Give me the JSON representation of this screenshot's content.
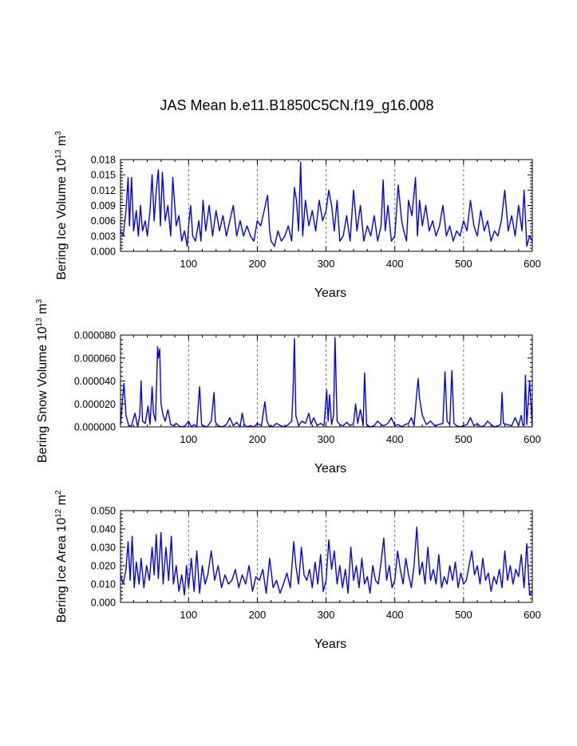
{
  "title": "JAS Mean b.e11.B1850C5CN.f19_g16.008",
  "colors": {
    "line": "#0000ff",
    "axis": "#000000"
  },
  "chart_data": [
    {
      "type": "line",
      "ylabel": {
        "base": "Bering Ice Volume 10",
        "exp": "13",
        "unit": " m",
        "unit_exp": "3"
      },
      "xlabel": "Years",
      "xlim": [
        1,
        600
      ],
      "ylim": [
        0,
        0.018
      ],
      "xticks": [
        100,
        200,
        300,
        400,
        500,
        600
      ],
      "yticks": [
        "0.000",
        "0.003",
        "0.006",
        "0.009",
        "0.012",
        "0.015",
        "0.018"
      ],
      "grid_x": [
        100,
        200,
        300,
        400,
        500
      ],
      "x": [
        1,
        5,
        9,
        12,
        14,
        17,
        20,
        24,
        27,
        30,
        33,
        37,
        40,
        44,
        47,
        50,
        53,
        56,
        59,
        62,
        66,
        70,
        74,
        77,
        82,
        86,
        90,
        94,
        98,
        100,
        103,
        106,
        110,
        115,
        118,
        121,
        125,
        130,
        135,
        140,
        145,
        150,
        155,
        160,
        165,
        170,
        175,
        180,
        185,
        190,
        195,
        200,
        205,
        210,
        215,
        218,
        220,
        225,
        230,
        235,
        240,
        245,
        250,
        254,
        257,
        260,
        263,
        266,
        270,
        275,
        280,
        285,
        290,
        295,
        300,
        304,
        308,
        312,
        316,
        320,
        325,
        330,
        335,
        340,
        345,
        350,
        355,
        360,
        365,
        370,
        375,
        380,
        383,
        386,
        390,
        395,
        400,
        405,
        410,
        413,
        417,
        420,
        425,
        430,
        433,
        436,
        440,
        445,
        450,
        455,
        460,
        465,
        470,
        475,
        480,
        485,
        490,
        495,
        500,
        505,
        510,
        515,
        520,
        525,
        530,
        535,
        540,
        545,
        550,
        555,
        560,
        565,
        570,
        575,
        580,
        585,
        588,
        592,
        596,
        600
      ],
      "values": [
        0.004,
        0.003,
        0.008,
        0.0145,
        0.005,
        0.0145,
        0.004,
        0.008,
        0.003,
        0.009,
        0.004,
        0.006,
        0.003,
        0.008,
        0.015,
        0.006,
        0.012,
        0.016,
        0.005,
        0.0155,
        0.006,
        0.009,
        0.003,
        0.0145,
        0.005,
        0.007,
        0.002,
        0.004,
        0.001,
        0.005,
        0.009,
        0.003,
        0.002,
        0.006,
        0.002,
        0.01,
        0.004,
        0.009,
        0.003,
        0.008,
        0.004,
        0.007,
        0.003,
        0.006,
        0.009,
        0.003,
        0.006,
        0.003,
        0.005,
        0.003,
        0.002,
        0.006,
        0.005,
        0.008,
        0.011,
        0.004,
        0.002,
        0.001,
        0.004,
        0.002,
        0.003,
        0.005,
        0.002,
        0.0125,
        0.01,
        0.004,
        0.0175,
        0.003,
        0.01,
        0.005,
        0.008,
        0.004,
        0.01,
        0.006,
        0.008,
        0.012,
        0.009,
        0.004,
        0.01,
        0.002,
        0.003,
        0.007,
        0.002,
        0.012,
        0.004,
        0.009,
        0.002,
        0.005,
        0.003,
        0.007,
        0.002,
        0.005,
        0.014,
        0.004,
        0.009,
        0.002,
        0.003,
        0.013,
        0.006,
        0.004,
        0.002,
        0.01,
        0.007,
        0.0145,
        0.003,
        0.01,
        0.005,
        0.009,
        0.004,
        0.006,
        0.003,
        0.005,
        0.009,
        0.003,
        0.005,
        0.002,
        0.004,
        0.003,
        0.006,
        0.004,
        0.01,
        0.005,
        0.003,
        0.008,
        0.004,
        0.006,
        0.002,
        0.004,
        0.003,
        0.006,
        0.012,
        0.004,
        0.007,
        0.003,
        0.009,
        0.004,
        0.012,
        0.001,
        0.003,
        0.002
      ]
    },
    {
      "type": "line",
      "ylabel": {
        "base": "Bering Snow Volume 10",
        "exp": "13",
        "unit": " m",
        "unit_exp": "3"
      },
      "xlabel": "Years",
      "xlim": [
        1,
        600
      ],
      "ylim": [
        0,
        8e-05
      ],
      "xticks": [
        100,
        200,
        300,
        400,
        500,
        600
      ],
      "yticks": [
        "0.000000",
        "0.000020",
        "0.000040",
        "0.000060",
        "0.000080"
      ],
      "grid_x": [
        100,
        200,
        300,
        400,
        500
      ],
      "x": [
        1,
        6,
        9,
        13,
        17,
        22,
        26,
        29,
        31,
        33,
        37,
        41,
        44,
        47,
        49,
        52,
        55,
        56,
        58,
        60,
        63,
        66,
        70,
        74,
        78,
        82,
        86,
        90,
        95,
        100,
        104,
        108,
        112,
        116,
        119,
        122,
        127,
        133,
        137,
        139,
        143,
        149,
        155,
        160,
        165,
        170,
        175,
        178,
        181,
        185,
        190,
        195,
        200,
        206,
        211,
        214,
        217,
        222,
        228,
        234,
        240,
        245,
        250,
        252,
        254,
        256,
        260,
        265,
        270,
        275,
        278,
        282,
        287,
        292,
        297,
        301,
        303,
        305,
        308,
        311,
        313,
        316,
        320,
        325,
        330,
        335,
        340,
        343,
        346,
        350,
        354,
        356,
        359,
        364,
        370,
        375,
        380,
        384,
        390,
        395,
        400,
        405,
        410,
        415,
        420,
        424,
        428,
        432,
        434,
        436,
        440,
        446,
        452,
        458,
        464,
        470,
        473,
        476,
        480,
        483,
        486,
        490,
        495,
        500,
        505,
        510,
        515,
        520,
        525,
        530,
        535,
        540,
        545,
        550,
        554,
        556,
        558,
        563,
        570,
        575,
        580,
        584,
        586,
        588,
        590,
        592,
        596,
        600
      ],
      "values": [
        2e-06,
        3.8e-05,
        1e-05,
        1e-06,
        1e-06,
        1.2e-05,
        0.0,
        1e-05,
        4e-05,
        5e-06,
        3e-06,
        1.8e-05,
        2e-06,
        3.5e-05,
        1.2e-05,
        5e-06,
        7e-05,
        6e-05,
        6.8e-05,
        2e-05,
        1e-05,
        5e-06,
        1.5e-05,
        2e-06,
        1e-06,
        3e-06,
        1e-06,
        0.0,
        1e-06,
        5e-06,
        0.0,
        2e-06,
        0.0,
        3.5e-05,
        2e-06,
        1e-06,
        0.0,
        5e-06,
        3e-05,
        4e-06,
        1e-06,
        0.0,
        2e-06,
        8e-06,
        1e-06,
        4e-06,
        0.0,
        1.2e-05,
        2e-06,
        0.0,
        1e-06,
        0.0,
        3e-06,
        1e-06,
        2.2e-05,
        5e-06,
        1e-06,
        0.0,
        3e-06,
        1e-06,
        0.0,
        2e-06,
        5e-06,
        3e-05,
        7.7e-05,
        1e-05,
        1e-06,
        5e-06,
        3e-06,
        1.2e-05,
        2e-06,
        8e-06,
        1e-06,
        3e-06,
        1e-06,
        3.2e-05,
        5e-06,
        2.8e-05,
        2e-06,
        1e-05,
        7.8e-05,
        5e-06,
        2e-06,
        1e-06,
        4e-06,
        1e-06,
        3e-06,
        2e-05,
        3e-06,
        1.5e-05,
        1e-06,
        4.7e-05,
        2e-06,
        0.0,
        1e-06,
        5e-06,
        2e-06,
        1e-06,
        3e-06,
        8e-06,
        1e-06,
        2e-06,
        0.0,
        2e-06,
        3e-06,
        8e-06,
        1e-06,
        3e-05,
        4.2e-05,
        2.5e-05,
        1e-05,
        2e-06,
        5e-06,
        1e-06,
        2e-06,
        3e-06,
        4.8e-05,
        5e-06,
        2e-06,
        4.9e-05,
        3e-06,
        1e-06,
        0.0,
        1e-06,
        2e-06,
        8e-06,
        1e-06,
        3e-06,
        0.0,
        1e-06,
        5e-06,
        2e-06,
        0.0,
        1e-06,
        2e-06,
        3e-05,
        3e-06,
        2e-06,
        1e-06,
        8e-06,
        1e-06,
        1e-05,
        2e-06,
        1e-06,
        4.5e-05,
        2e-06,
        4e-05,
        1e-06
      ]
    },
    {
      "type": "line",
      "ylabel": {
        "base": "Bering Ice Area 10",
        "exp": "12",
        "unit": " m",
        "unit_exp": "2"
      },
      "xlabel": "Years",
      "xlim": [
        1,
        600
      ],
      "ylim": [
        0,
        0.05
      ],
      "xticks": [
        100,
        200,
        300,
        400,
        500,
        600
      ],
      "yticks": [
        "0.000",
        "0.010",
        "0.020",
        "0.030",
        "0.040",
        "0.050"
      ],
      "grid_x": [
        100,
        200,
        300,
        400,
        500
      ],
      "x": [
        1,
        5,
        9,
        12,
        15,
        18,
        21,
        24,
        28,
        31,
        35,
        39,
        43,
        47,
        50,
        53,
        56,
        60,
        63,
        67,
        71,
        75,
        78,
        82,
        86,
        90,
        94,
        97,
        100,
        104,
        108,
        112,
        116,
        120,
        124,
        128,
        133,
        138,
        143,
        148,
        153,
        158,
        163,
        168,
        173,
        178,
        183,
        188,
        193,
        198,
        203,
        208,
        213,
        218,
        223,
        228,
        233,
        238,
        243,
        248,
        253,
        256,
        260,
        264,
        268,
        272,
        276,
        280,
        284,
        288,
        292,
        296,
        300,
        304,
        308,
        312,
        316,
        320,
        324,
        328,
        332,
        336,
        340,
        344,
        348,
        352,
        356,
        360,
        364,
        368,
        372,
        376,
        380,
        384,
        388,
        392,
        396,
        400,
        404,
        408,
        412,
        416,
        420,
        424,
        428,
        432,
        436,
        440,
        444,
        448,
        452,
        456,
        460,
        464,
        468,
        472,
        476,
        480,
        484,
        488,
        492,
        496,
        500,
        504,
        508,
        512,
        516,
        520,
        524,
        528,
        532,
        536,
        540,
        544,
        548,
        552,
        556,
        560,
        564,
        568,
        572,
        576,
        580,
        584,
        588,
        592,
        596,
        600
      ],
      "values": [
        0.015,
        0.01,
        0.018,
        0.033,
        0.012,
        0.036,
        0.008,
        0.022,
        0.01,
        0.024,
        0.008,
        0.02,
        0.012,
        0.03,
        0.015,
        0.037,
        0.013,
        0.038,
        0.01,
        0.03,
        0.012,
        0.036,
        0.01,
        0.02,
        0.006,
        0.015,
        0.004,
        0.02,
        0.008,
        0.024,
        0.006,
        0.028,
        0.005,
        0.02,
        0.01,
        0.015,
        0.028,
        0.012,
        0.02,
        0.008,
        0.015,
        0.01,
        0.012,
        0.018,
        0.008,
        0.015,
        0.01,
        0.02,
        0.006,
        0.014,
        0.012,
        0.018,
        0.005,
        0.024,
        0.008,
        0.012,
        0.005,
        0.01,
        0.016,
        0.008,
        0.033,
        0.02,
        0.01,
        0.03,
        0.015,
        0.012,
        0.018,
        0.008,
        0.022,
        0.01,
        0.026,
        0.006,
        0.012,
        0.034,
        0.018,
        0.028,
        0.01,
        0.02,
        0.008,
        0.018,
        0.005,
        0.03,
        0.012,
        0.02,
        0.008,
        0.024,
        0.01,
        0.014,
        0.005,
        0.02,
        0.012,
        0.01,
        0.022,
        0.035,
        0.012,
        0.02,
        0.008,
        0.012,
        0.028,
        0.018,
        0.01,
        0.024,
        0.015,
        0.008,
        0.02,
        0.041,
        0.015,
        0.022,
        0.01,
        0.03,
        0.012,
        0.018,
        0.01,
        0.026,
        0.008,
        0.014,
        0.01,
        0.02,
        0.012,
        0.022,
        0.008,
        0.016,
        0.01,
        0.012,
        0.02,
        0.028,
        0.015,
        0.02,
        0.01,
        0.024,
        0.012,
        0.016,
        0.006,
        0.014,
        0.01,
        0.018,
        0.008,
        0.028,
        0.012,
        0.02,
        0.01,
        0.018,
        0.014,
        0.026,
        0.008,
        0.032,
        0.004,
        0.006
      ]
    }
  ]
}
